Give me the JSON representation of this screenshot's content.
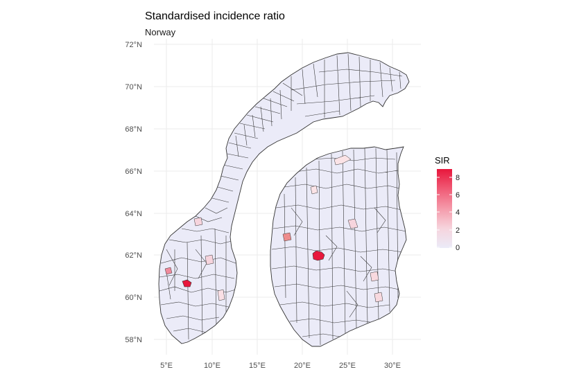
{
  "title": "Standardised incidence ratio",
  "subtitle": "Norway",
  "y_ticks": [
    "58°N",
    "60°N",
    "62°N",
    "64°N",
    "66°N",
    "68°N",
    "70°N",
    "72°N"
  ],
  "x_ticks": [
    "5°E",
    "10°E",
    "15°E",
    "20°E",
    "25°E",
    "30°E"
  ],
  "legend": {
    "title": "SIR",
    "labels": [
      "8",
      "6",
      "4",
      "2",
      "0"
    ],
    "min": 0,
    "max": 8.8,
    "color_low": "#ebebf8",
    "color_high": "#e8173c"
  },
  "colors": {
    "fill_default": "#ebebf8",
    "border": "#333333",
    "grid": "#ebebeb"
  }
}
